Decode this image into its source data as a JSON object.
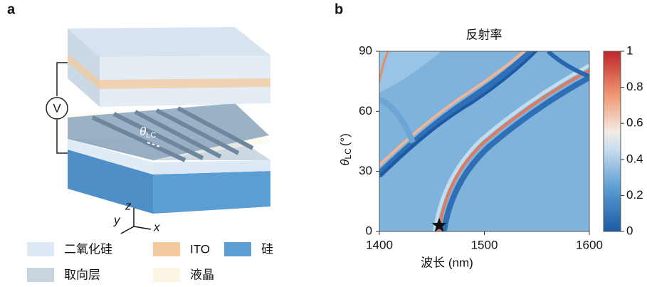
{
  "panel_a": {
    "label": "a",
    "voltage": "V",
    "angle_label": {
      "symbol": "θ",
      "sub": "LC"
    },
    "axes": {
      "z": "z",
      "y": "y",
      "x": "x"
    },
    "legend": [
      {
        "name": "二氧化硅",
        "color": "#dde9f5"
      },
      {
        "name": "ITO",
        "color": "#f2c99c"
      },
      {
        "name": "硅",
        "color": "#5b9ed4"
      },
      {
        "name": "取向层",
        "color": "#c9d4df"
      },
      {
        "name": "液晶",
        "color": "#fcf5e3"
      }
    ]
  },
  "chart_data": {
    "type": "heatmap",
    "label": "b",
    "title": "反射率",
    "xlabel": "波长 (nm)",
    "ylabel": {
      "symbol": "θ",
      "sub": "LC",
      "unit": "(°)"
    },
    "xlim": [
      1400,
      1600
    ],
    "xticks": [
      1400,
      1500,
      1600
    ],
    "ylim": [
      0,
      90
    ],
    "yticks": [
      0,
      30,
      60,
      90
    ],
    "colorbar": {
      "lim": [
        0,
        1
      ],
      "ticks": [
        0,
        0.2,
        0.4,
        0.6,
        0.8,
        1
      ]
    },
    "marker": {
      "x": 1457,
      "y": 3
    }
  }
}
